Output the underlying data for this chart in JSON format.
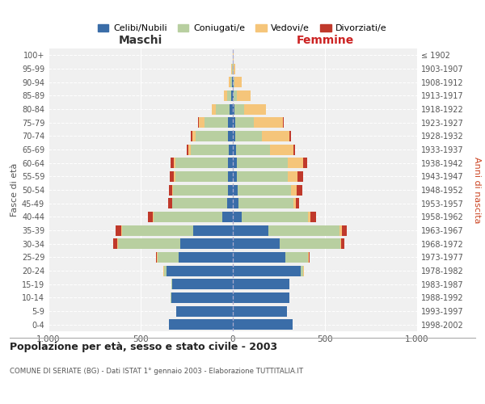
{
  "age_groups": [
    "100+",
    "95-99",
    "90-94",
    "85-89",
    "80-84",
    "75-79",
    "70-74",
    "65-69",
    "60-64",
    "55-59",
    "50-54",
    "45-49",
    "40-44",
    "35-39",
    "30-34",
    "25-29",
    "20-24",
    "15-19",
    "10-14",
    "5-9",
    "0-4"
  ],
  "birth_years": [
    "≤ 1902",
    "1903-1907",
    "1908-1912",
    "1913-1917",
    "1918-1922",
    "1923-1927",
    "1928-1932",
    "1933-1937",
    "1938-1942",
    "1943-1947",
    "1948-1952",
    "1953-1957",
    "1958-1962",
    "1963-1967",
    "1968-1972",
    "1973-1977",
    "1978-1982",
    "1983-1987",
    "1988-1992",
    "1993-1997",
    "1998-2002"
  ],
  "males": {
    "celibe": [
      2,
      2,
      4,
      8,
      18,
      28,
      28,
      22,
      28,
      28,
      28,
      32,
      55,
      215,
      285,
      295,
      360,
      330,
      335,
      305,
      345
    ],
    "coniugato": [
      0,
      3,
      10,
      22,
      75,
      125,
      175,
      205,
      285,
      285,
      295,
      295,
      375,
      385,
      340,
      115,
      12,
      4,
      2,
      0,
      0
    ],
    "vedovo": [
      0,
      2,
      8,
      18,
      22,
      30,
      18,
      15,
      8,
      6,
      4,
      4,
      4,
      4,
      4,
      4,
      4,
      0,
      0,
      0,
      0
    ],
    "divorziato": [
      0,
      0,
      0,
      0,
      0,
      4,
      8,
      8,
      18,
      22,
      18,
      18,
      28,
      30,
      18,
      4,
      0,
      0,
      0,
      0,
      0
    ]
  },
  "females": {
    "nubile": [
      2,
      2,
      3,
      5,
      8,
      15,
      15,
      18,
      22,
      22,
      25,
      32,
      50,
      195,
      255,
      285,
      370,
      305,
      305,
      295,
      325
    ],
    "coniugata": [
      0,
      2,
      6,
      18,
      55,
      100,
      145,
      185,
      275,
      275,
      290,
      295,
      358,
      385,
      328,
      125,
      12,
      4,
      2,
      0,
      0
    ],
    "vedova": [
      2,
      8,
      38,
      75,
      115,
      155,
      145,
      125,
      85,
      55,
      32,
      16,
      12,
      10,
      6,
      4,
      4,
      0,
      0,
      0,
      0
    ],
    "divorziata": [
      0,
      0,
      0,
      0,
      4,
      8,
      10,
      10,
      22,
      28,
      28,
      18,
      32,
      28,
      16,
      4,
      0,
      0,
      0,
      0,
      0
    ]
  },
  "colors": {
    "celibe": "#3a6da8",
    "coniugato": "#b8cfa0",
    "vedovo": "#f5c57a",
    "divorziato": "#c0392b"
  },
  "legend_labels": [
    "Celibi/Nubili",
    "Coniugati/e",
    "Vedovi/e",
    "Divorziati/e"
  ],
  "title_main": "Popolazione per età, sesso e stato civile - 2003",
  "title_sub": "COMUNE DI SERIATE (BG) - Dati ISTAT 1° gennaio 2003 - Elaborazione TUTTITALIA.IT",
  "xlabel_left": "Maschi",
  "xlabel_right": "Femmine",
  "ylabel_left": "Fasce di età",
  "ylabel_right": "Anni di nascita",
  "xlim": 1000,
  "bg_color": "#ffffff",
  "plot_bg_color": "#f0f0f0"
}
